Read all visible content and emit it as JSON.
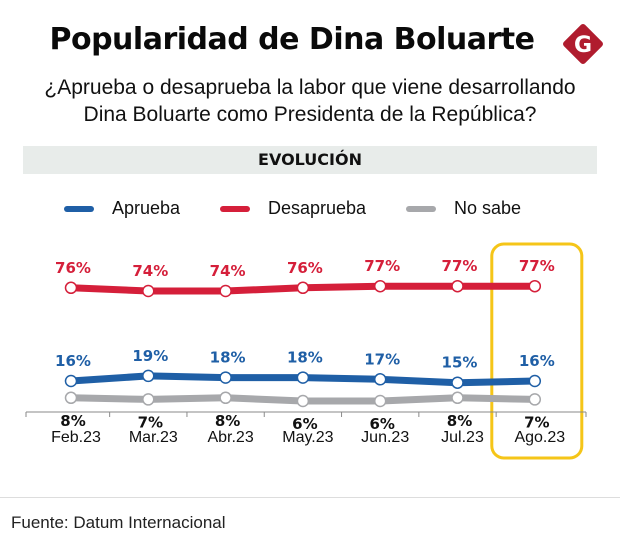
{
  "header": {
    "title": "Popularidad de Dina Boluarte",
    "logo_letter": "G",
    "subtitle_line1": "¿Aprueba o desaprueba la labor que  viene desarrollando",
    "subtitle_line2": "Dina Boluarte  como Presidenta de la República?"
  },
  "section": {
    "label": "EVOLUCIÓN"
  },
  "colors": {
    "aprueba": "#1f5fa6",
    "desaprueba": "#d51f3a",
    "no_sabe": "#a7a8ab",
    "highlight": "#f5c518",
    "logo": "#b01c2e"
  },
  "footer": {
    "source": "Fuente: Datum Internacional"
  },
  "chart_data": {
    "type": "line",
    "title": "Popularidad de Dina Boluarte",
    "subtitle": "¿Aprueba o desaprueba la labor que viene desarrollando Dina Boluarte como Presidenta de la República?",
    "categories": [
      "Feb.23",
      "Mar.23",
      "Abr.23",
      "May.23",
      "Jun.23",
      "Jul.23",
      "Ago.23"
    ],
    "series": [
      {
        "name": "Aprueba",
        "key": "aprueba",
        "values": [
          16,
          19,
          18,
          18,
          17,
          15,
          16
        ],
        "labels": [
          "16%",
          "19%",
          "18%",
          "18%",
          "17%",
          "15%",
          "16%"
        ],
        "label_position": "above"
      },
      {
        "name": "Desaprueba",
        "key": "desaprueba",
        "values": [
          76,
          74,
          74,
          76,
          77,
          77,
          77
        ],
        "labels": [
          "76%",
          "74%",
          "74%",
          "76%",
          "77%",
          "77%",
          "77%"
        ],
        "label_position": "above"
      },
      {
        "name": "No sabe",
        "key": "no_sabe",
        "values": [
          8,
          7,
          8,
          6,
          6,
          8,
          7
        ],
        "labels": [
          "8%",
          "7%",
          "8%",
          "6%",
          "6%",
          "8%",
          "7%"
        ],
        "label_position": "below"
      }
    ],
    "legend": {
      "position": "top",
      "entries": [
        "Aprueba",
        "Desaprueba",
        "No sabe"
      ]
    },
    "highlighted_category": "Ago.23",
    "grid": false,
    "xlabel": "",
    "ylabel": "",
    "unit": "%"
  }
}
